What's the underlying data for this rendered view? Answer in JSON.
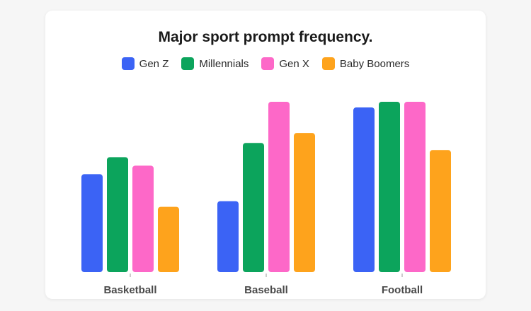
{
  "chart_data": {
    "type": "bar",
    "title": "Major sport prompt frequency.",
    "categories": [
      "Basketball",
      "Baseball",
      "Football"
    ],
    "series": [
      {
        "name": "Gen Z",
        "color": "#3b63f5",
        "values": [
          69,
          50,
          116
        ]
      },
      {
        "name": "Millennials",
        "color": "#0ca45c",
        "values": [
          81,
          91,
          120
        ]
      },
      {
        "name": "Gen X",
        "color": "#fd68c8",
        "values": [
          75,
          120,
          120
        ]
      },
      {
        "name": "Baby Boomers",
        "color": "#fea31c",
        "values": [
          46,
          98,
          86
        ]
      }
    ],
    "ylim": [
      0,
      120
    ],
    "grid": false,
    "legend_position": "top-center",
    "xlabel": "",
    "ylabel": ""
  }
}
